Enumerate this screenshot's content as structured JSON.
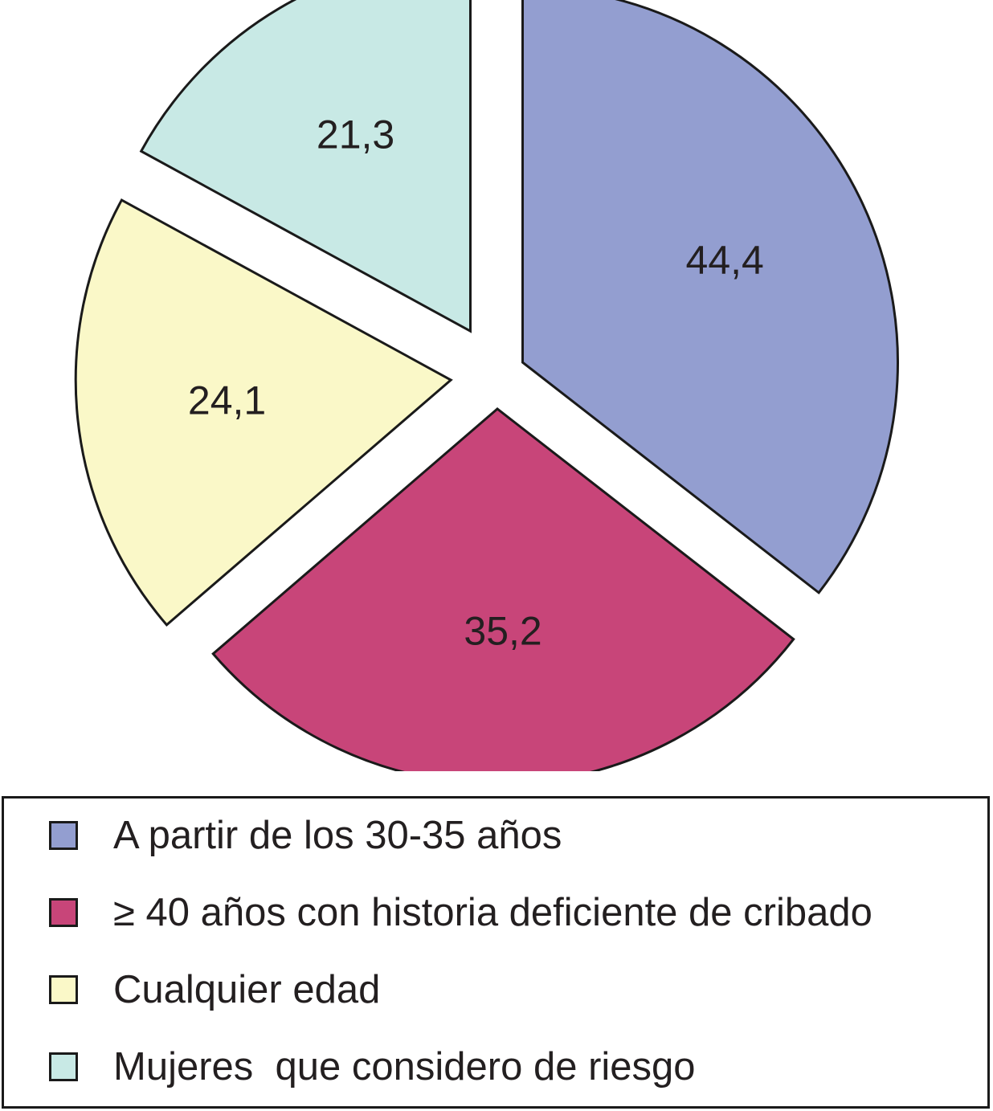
{
  "chart_data": {
    "type": "pie",
    "values": [
      44.4,
      35.2,
      24.1,
      21.3
    ],
    "value_labels": [
      "44,4",
      "35,2",
      "24,1",
      "21,3"
    ],
    "exploded": true,
    "legend_position": "bottom",
    "series": [
      {
        "name": "A partir de los 30-35 años",
        "value": 44.4,
        "label": "44,4",
        "color": "#939ed0"
      },
      {
        "name": "≥ 40 años con historia deficiente de cribado",
        "value": 35.2,
        "label": "35,2",
        "color": "#c84579"
      },
      {
        "name": "Cualquier edad",
        "value": 24.1,
        "label": "24,1",
        "color": "#faf8c8"
      },
      {
        "name": "Mujeres  que considero de riesgo",
        "value": 21.3,
        "label": "21,3",
        "color": "#c8e9e5"
      }
    ]
  },
  "legend": {
    "items": [
      {
        "label": "A partir de los 30-35 años",
        "color": "#939ed0"
      },
      {
        "label": "≥ 40 años con historia deficiente de cribado",
        "color": "#c84579"
      },
      {
        "label": "Cualquier edad",
        "color": "#faf8c8"
      },
      {
        "label": "Mujeres  que considero de riesgo",
        "color": "#c8e9e5"
      }
    ]
  }
}
